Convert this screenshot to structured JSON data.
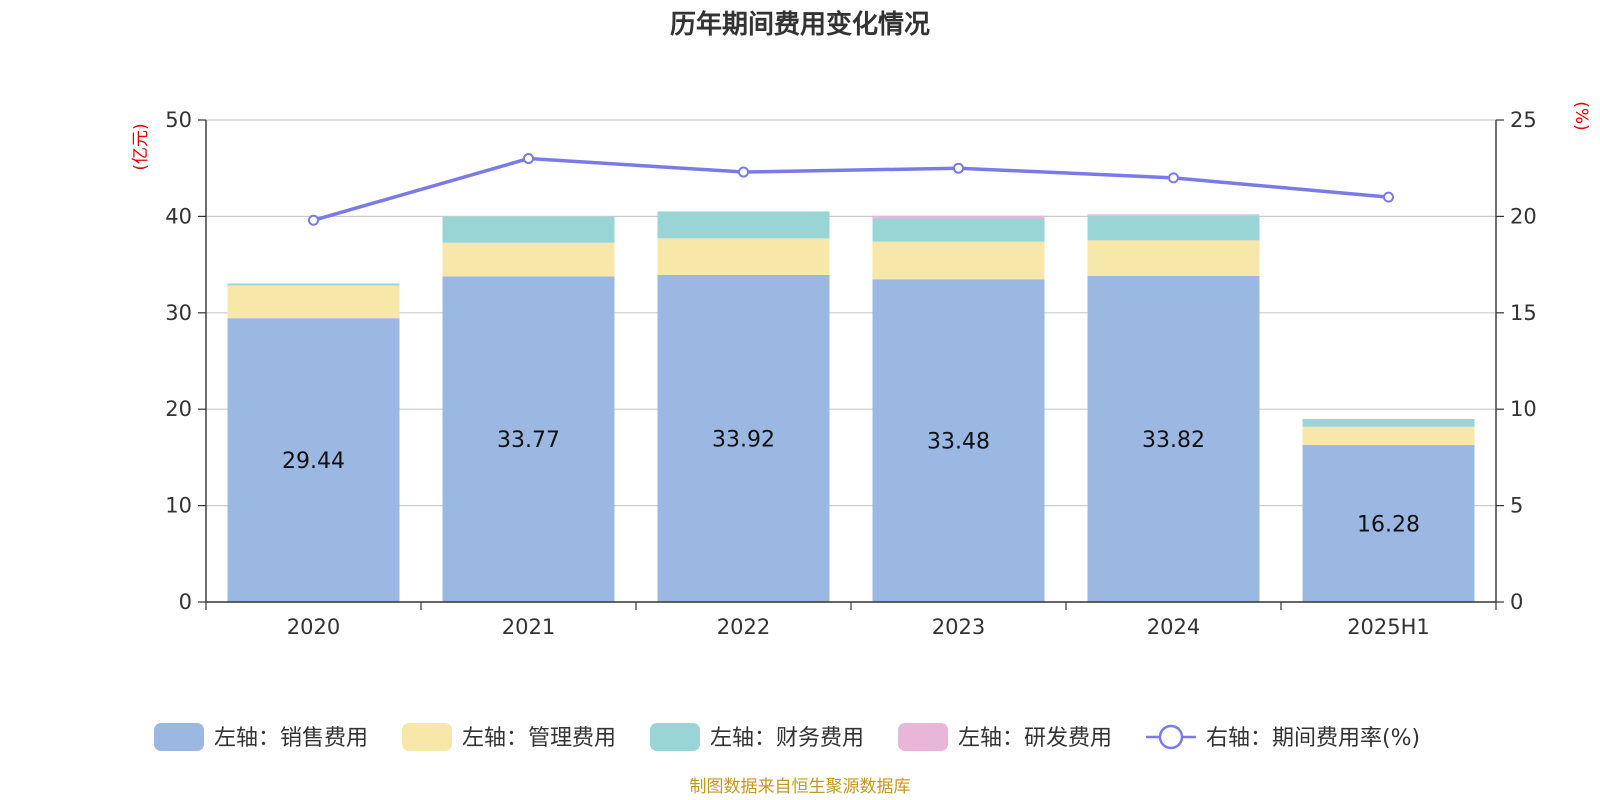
{
  "chart_data": {
    "type": "bar",
    "title": "历年期间费用变化情况",
    "source": "制图数据来自恒生聚源数据库",
    "left_unit": "(亿元)",
    "right_unit": "(%)",
    "categories": [
      "2020",
      "2021",
      "2022",
      "2023",
      "2024",
      "2025H1"
    ],
    "y_left": {
      "min": 0,
      "max": 50,
      "ticks": [
        "0",
        "10",
        "20",
        "30",
        "40",
        "50"
      ]
    },
    "y_right": {
      "min": 0,
      "max": 25,
      "ticks": [
        "0",
        "5",
        "10",
        "15",
        "20",
        "25"
      ]
    },
    "grid": true,
    "legend_position": "bottom",
    "stacked": true,
    "series": [
      {
        "name": "左轴：销售费用",
        "axis": "left",
        "type": "bar",
        "color": "#9bb8e2",
        "values": [
          29.44,
          33.77,
          33.92,
          33.48,
          33.82,
          16.28
        ],
        "labels": [
          "29.44",
          "33.77",
          "33.92",
          "33.48",
          "33.82",
          "16.28"
        ]
      },
      {
        "name": "左轴：管理费用",
        "axis": "left",
        "type": "bar",
        "color": "#f7e7a8",
        "values": [
          3.4,
          3.5,
          3.8,
          3.9,
          3.7,
          1.9
        ]
      },
      {
        "name": "左轴：财务费用",
        "axis": "left",
        "type": "bar",
        "color": "#99d5d5",
        "values": [
          0.2,
          2.7,
          2.8,
          2.4,
          2.6,
          0.8
        ]
      },
      {
        "name": "左轴：研发费用",
        "axis": "left",
        "type": "bar",
        "color": "#e8b6d9",
        "values": [
          0.0,
          0.0,
          0.0,
          0.3,
          0.1,
          0.0
        ]
      },
      {
        "name": "右轴：期间费用率(%)",
        "axis": "right",
        "type": "line",
        "color": "#7b7be8",
        "values": [
          19.8,
          23.0,
          22.3,
          22.5,
          22.0,
          21.0
        ]
      }
    ]
  }
}
